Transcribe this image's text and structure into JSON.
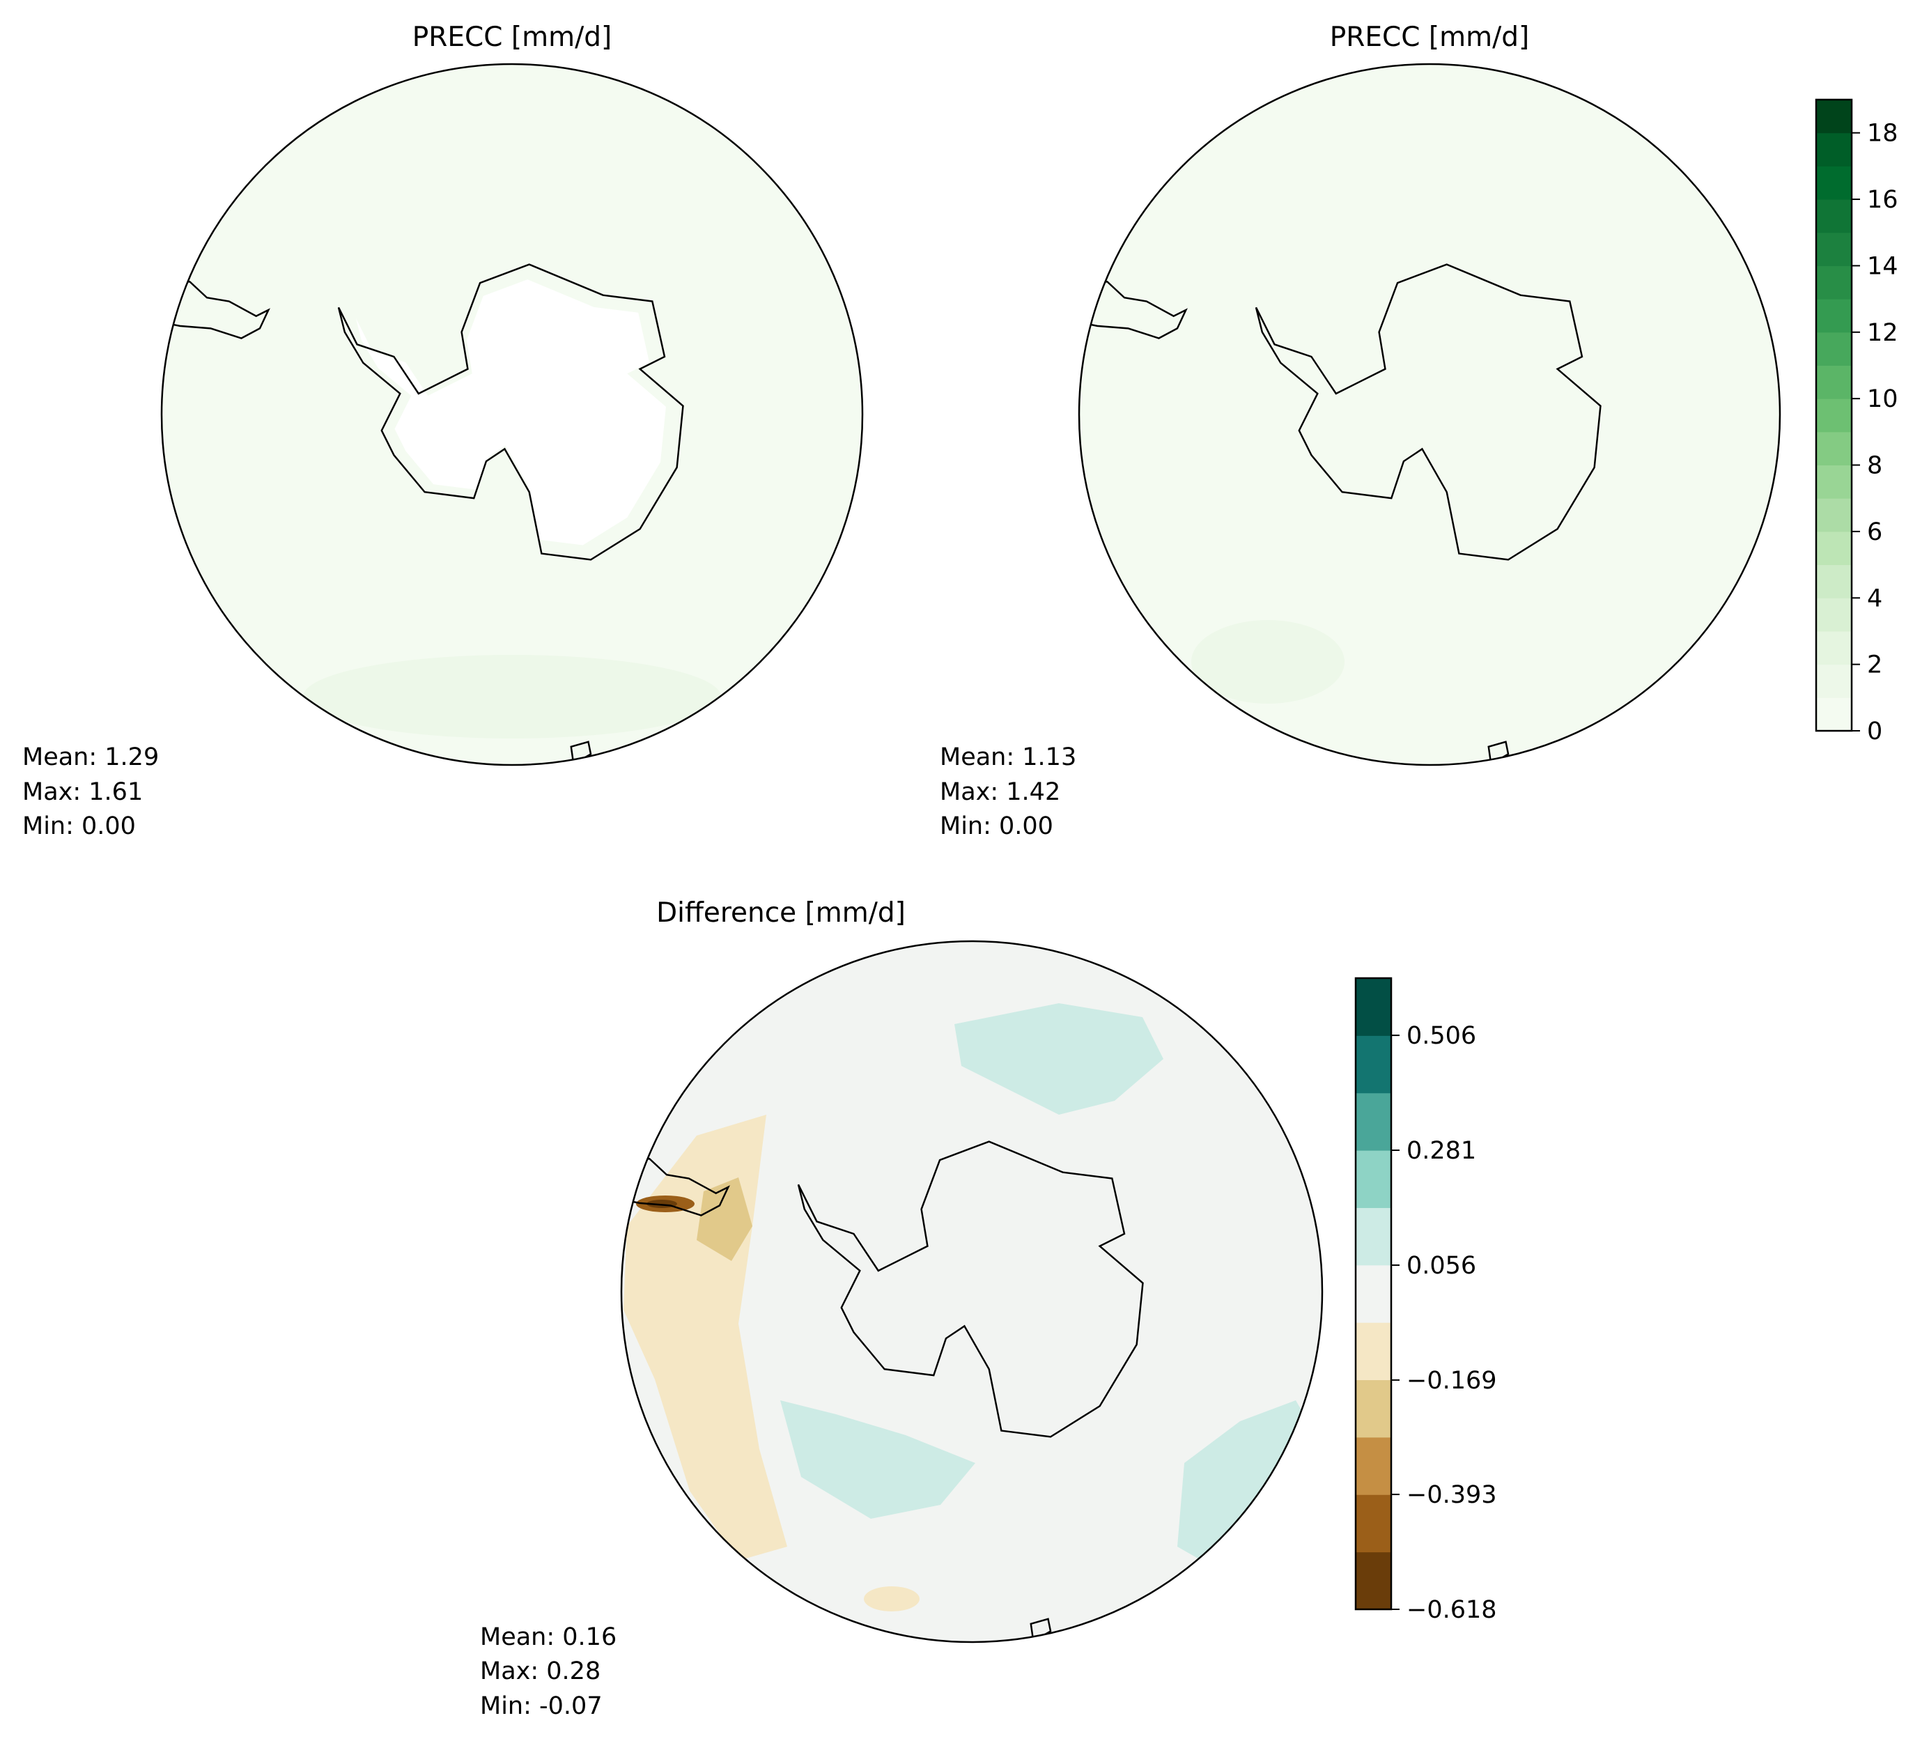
{
  "chart_data": [
    {
      "type": "heatmap",
      "projection": "south-polar-stereographic",
      "title": "PRECC [mm/d]",
      "stats": {
        "mean_label": "Mean:  1.29",
        "max_label": "Max:  1.61",
        "min_label": "Min:  0.00"
      },
      "mean": 1.29,
      "max": 1.61,
      "min": 0.0
    },
    {
      "type": "heatmap",
      "projection": "south-polar-stereographic",
      "title": "PRECC [mm/d]",
      "stats": {
        "mean_label": "Mean:  1.13",
        "max_label": "Max:  1.42",
        "min_label": "Min:  0.00"
      },
      "mean": 1.13,
      "max": 1.42,
      "min": 0.0,
      "colorbar": {
        "range": [
          0,
          19
        ],
        "levels": 19,
        "ticks": [
          "0",
          "2",
          "4",
          "6",
          "8",
          "10",
          "12",
          "14",
          "16",
          "18"
        ],
        "colors": [
          "#f4fbf1",
          "#edf8e9",
          "#e5f5e0",
          "#d9f0d3",
          "#cdebc7",
          "#bde5b5",
          "#acdca6",
          "#99d595",
          "#84cb83",
          "#6dc072",
          "#5bb567",
          "#47a85c",
          "#349b51",
          "#288e47",
          "#1c813f",
          "#107536",
          "#006c2e",
          "#005e28",
          "#00441b"
        ]
      }
    },
    {
      "type": "heatmap",
      "projection": "south-polar-stereographic",
      "title": "Difference [mm/d]",
      "stats": {
        "mean_label": "Mean:  0.16",
        "max_label": "Max:  0.28",
        "min_label": "Min: -0.07"
      },
      "mean": 0.16,
      "max": 0.28,
      "min": -0.07,
      "colorbar": {
        "range": [
          -0.618,
          0.618
        ],
        "levels": 11,
        "ticks": [
          "−0.618",
          "−0.393",
          "−0.169",
          "0.056",
          "0.281",
          "0.506"
        ],
        "tick_values": [
          -0.618,
          -0.393,
          -0.169,
          0.056,
          0.281,
          0.506
        ],
        "colors": [
          "#6a3d0a",
          "#9b5f19",
          "#c58f44",
          "#e1c98a",
          "#f5e7c5",
          "#f2f4f2",
          "#cdebe5",
          "#8ed3c5",
          "#4aa699",
          "#137570",
          "#024f45"
        ]
      }
    }
  ]
}
